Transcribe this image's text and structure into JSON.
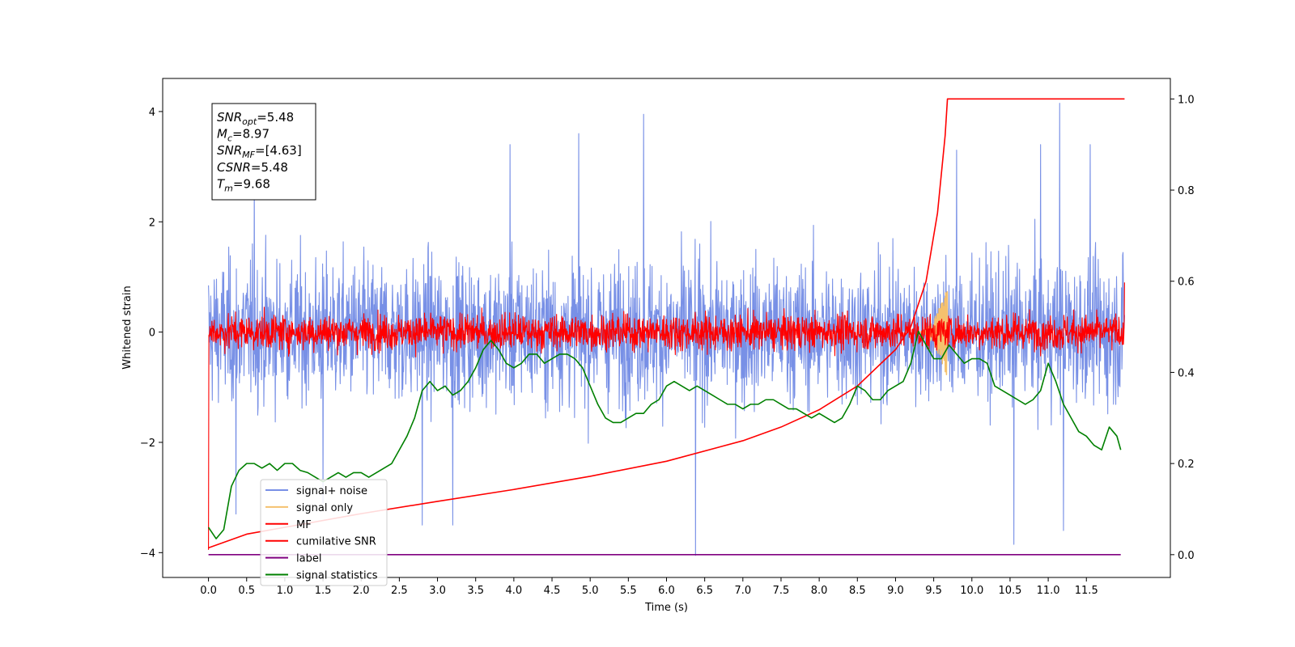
{
  "chart_data": {
    "type": "line",
    "xlabel": "Time (s)",
    "ylabel": "Whitened strain",
    "xlim": [
      -0.6,
      12.6
    ],
    "ylim": [
      -4.45,
      4.6
    ],
    "y2lim": [
      -0.05,
      1.045
    ],
    "grid": false,
    "legend_position": "lower-left",
    "xticks": [
      "0.0",
      "0.5",
      "1.0",
      "1.5",
      "2.0",
      "2.5",
      "3.0",
      "3.5",
      "4.0",
      "4.5",
      "5.0",
      "5.5",
      "6.0",
      "6.5",
      "7.0",
      "7.5",
      "8.0",
      "8.5",
      "9.0",
      "9.5",
      "10.0",
      "10.5",
      "11.0",
      "11.5"
    ],
    "yticks": [
      "−4",
      "−2",
      "0",
      "2",
      "4"
    ],
    "y2ticks": [
      "0.0",
      "0.2",
      "0.4",
      "0.6",
      "0.8",
      "1.0"
    ],
    "annotation": [
      {
        "name": "SNR",
        "sub": "opt",
        "value": "=5.48"
      },
      {
        "name": "M",
        "sub": "c",
        "value": "=8.97"
      },
      {
        "name": "SNR",
        "sub": "MF",
        "value": "=[4.63]"
      },
      {
        "name": "CSNR",
        "sub": "",
        "value": "=5.48"
      },
      {
        "name": "T",
        "sub": "m",
        "value": "=9.68"
      }
    ],
    "series": [
      {
        "name": "signal+ noise",
        "color": "#7890e6",
        "axis": "left",
        "kind": "noise",
        "t_start": 0.0,
        "t_end": 12.0,
        "std": 1.0,
        "samples": 2400,
        "extremes": [
          [
            0.36,
            -3.3
          ],
          [
            0.6,
            2.9
          ],
          [
            1.5,
            -3.1
          ],
          [
            2.8,
            -3.5
          ],
          [
            3.2,
            -3.5
          ],
          [
            3.95,
            3.4
          ],
          [
            4.85,
            3.6
          ],
          [
            5.7,
            3.95
          ],
          [
            6.38,
            -4.05
          ],
          [
            9.8,
            3.3
          ],
          [
            10.55,
            -3.85
          ],
          [
            10.9,
            3.4
          ],
          [
            11.15,
            4.15
          ],
          [
            11.2,
            -3.6
          ],
          [
            11.55,
            3.4
          ]
        ]
      },
      {
        "name": "signal only",
        "color": "#f5c16e",
        "axis": "left",
        "kind": "chirp",
        "t_start": 9.3,
        "t_end": 9.68,
        "peak": 0.85
      },
      {
        "name": "MF",
        "color": "#ff0000",
        "axis": "left",
        "kind": "noise",
        "t_start": 0.0,
        "t_end": 12.0,
        "std": 0.25,
        "samples": 2400,
        "extremes": [
          [
            0.0,
            1.0
          ],
          [
            0.0,
            -3.95
          ],
          [
            12.0,
            0.9
          ]
        ]
      },
      {
        "name": "cumilative SNR",
        "color": "#ff0000",
        "axis": "right",
        "kind": "line",
        "points": [
          [
            0.0,
            0.015
          ],
          [
            0.5,
            0.045
          ],
          [
            1.0,
            0.06
          ],
          [
            2.0,
            0.09
          ],
          [
            3.0,
            0.117
          ],
          [
            4.0,
            0.143
          ],
          [
            5.0,
            0.172
          ],
          [
            6.0,
            0.205
          ],
          [
            7.0,
            0.25
          ],
          [
            7.5,
            0.28
          ],
          [
            8.0,
            0.318
          ],
          [
            8.5,
            0.37
          ],
          [
            9.0,
            0.45
          ],
          [
            9.2,
            0.5
          ],
          [
            9.4,
            0.6
          ],
          [
            9.55,
            0.75
          ],
          [
            9.65,
            0.92
          ],
          [
            9.68,
            1.0
          ],
          [
            12.0,
            1.0
          ]
        ]
      },
      {
        "name": "label",
        "color": "#800080",
        "axis": "right",
        "kind": "line",
        "points": [
          [
            0.0,
            0.0
          ],
          [
            11.95,
            0.0
          ]
        ]
      },
      {
        "name": "signal statistics",
        "color": "#008000",
        "axis": "right",
        "kind": "line",
        "points": [
          [
            0.0,
            0.06
          ],
          [
            0.1,
            0.035
          ],
          [
            0.2,
            0.055
          ],
          [
            0.3,
            0.15
          ],
          [
            0.4,
            0.185
          ],
          [
            0.5,
            0.2
          ],
          [
            0.6,
            0.2
          ],
          [
            0.7,
            0.19
          ],
          [
            0.8,
            0.2
          ],
          [
            0.9,
            0.185
          ],
          [
            1.0,
            0.2
          ],
          [
            1.1,
            0.2
          ],
          [
            1.2,
            0.185
          ],
          [
            1.3,
            0.18
          ],
          [
            1.4,
            0.17
          ],
          [
            1.5,
            0.16
          ],
          [
            1.6,
            0.17
          ],
          [
            1.7,
            0.18
          ],
          [
            1.8,
            0.17
          ],
          [
            1.9,
            0.18
          ],
          [
            2.0,
            0.18
          ],
          [
            2.1,
            0.17
          ],
          [
            2.2,
            0.18
          ],
          [
            2.3,
            0.19
          ],
          [
            2.4,
            0.2
          ],
          [
            2.5,
            0.23
          ],
          [
            2.6,
            0.26
          ],
          [
            2.7,
            0.3
          ],
          [
            2.8,
            0.36
          ],
          [
            2.9,
            0.38
          ],
          [
            3.0,
            0.36
          ],
          [
            3.1,
            0.37
          ],
          [
            3.2,
            0.35
          ],
          [
            3.3,
            0.36
          ],
          [
            3.4,
            0.38
          ],
          [
            3.5,
            0.41
          ],
          [
            3.6,
            0.45
          ],
          [
            3.7,
            0.47
          ],
          [
            3.8,
            0.45
          ],
          [
            3.9,
            0.42
          ],
          [
            4.0,
            0.41
          ],
          [
            4.1,
            0.42
          ],
          [
            4.2,
            0.44
          ],
          [
            4.3,
            0.44
          ],
          [
            4.4,
            0.42
          ],
          [
            4.5,
            0.43
          ],
          [
            4.6,
            0.44
          ],
          [
            4.7,
            0.44
          ],
          [
            4.8,
            0.43
          ],
          [
            4.9,
            0.41
          ],
          [
            5.0,
            0.37
          ],
          [
            5.1,
            0.33
          ],
          [
            5.2,
            0.3
          ],
          [
            5.3,
            0.29
          ],
          [
            5.4,
            0.29
          ],
          [
            5.5,
            0.3
          ],
          [
            5.6,
            0.31
          ],
          [
            5.7,
            0.31
          ],
          [
            5.8,
            0.33
          ],
          [
            5.9,
            0.34
          ],
          [
            6.0,
            0.37
          ],
          [
            6.1,
            0.38
          ],
          [
            6.2,
            0.37
          ],
          [
            6.3,
            0.36
          ],
          [
            6.4,
            0.37
          ],
          [
            6.5,
            0.36
          ],
          [
            6.6,
            0.35
          ],
          [
            6.7,
            0.34
          ],
          [
            6.8,
            0.33
          ],
          [
            6.9,
            0.33
          ],
          [
            7.0,
            0.32
          ],
          [
            7.1,
            0.33
          ],
          [
            7.2,
            0.33
          ],
          [
            7.3,
            0.34
          ],
          [
            7.4,
            0.34
          ],
          [
            7.5,
            0.33
          ],
          [
            7.6,
            0.32
          ],
          [
            7.7,
            0.32
          ],
          [
            7.8,
            0.31
          ],
          [
            7.9,
            0.3
          ],
          [
            8.0,
            0.31
          ],
          [
            8.1,
            0.3
          ],
          [
            8.2,
            0.29
          ],
          [
            8.3,
            0.3
          ],
          [
            8.4,
            0.33
          ],
          [
            8.5,
            0.37
          ],
          [
            8.6,
            0.36
          ],
          [
            8.7,
            0.34
          ],
          [
            8.8,
            0.34
          ],
          [
            8.9,
            0.36
          ],
          [
            9.0,
            0.37
          ],
          [
            9.1,
            0.38
          ],
          [
            9.2,
            0.42
          ],
          [
            9.3,
            0.49
          ],
          [
            9.4,
            0.46
          ],
          [
            9.5,
            0.43
          ],
          [
            9.6,
            0.43
          ],
          [
            9.7,
            0.46
          ],
          [
            9.8,
            0.44
          ],
          [
            9.9,
            0.42
          ],
          [
            10.0,
            0.43
          ],
          [
            10.1,
            0.43
          ],
          [
            10.2,
            0.42
          ],
          [
            10.3,
            0.37
          ],
          [
            10.4,
            0.36
          ],
          [
            10.5,
            0.35
          ],
          [
            10.6,
            0.34
          ],
          [
            10.7,
            0.33
          ],
          [
            10.8,
            0.34
          ],
          [
            10.9,
            0.36
          ],
          [
            11.0,
            0.42
          ],
          [
            11.1,
            0.38
          ],
          [
            11.2,
            0.33
          ],
          [
            11.3,
            0.3
          ],
          [
            11.4,
            0.27
          ],
          [
            11.5,
            0.26
          ],
          [
            11.6,
            0.24
          ],
          [
            11.7,
            0.23
          ],
          [
            11.8,
            0.28
          ],
          [
            11.9,
            0.26
          ],
          [
            11.95,
            0.23
          ]
        ]
      }
    ]
  }
}
